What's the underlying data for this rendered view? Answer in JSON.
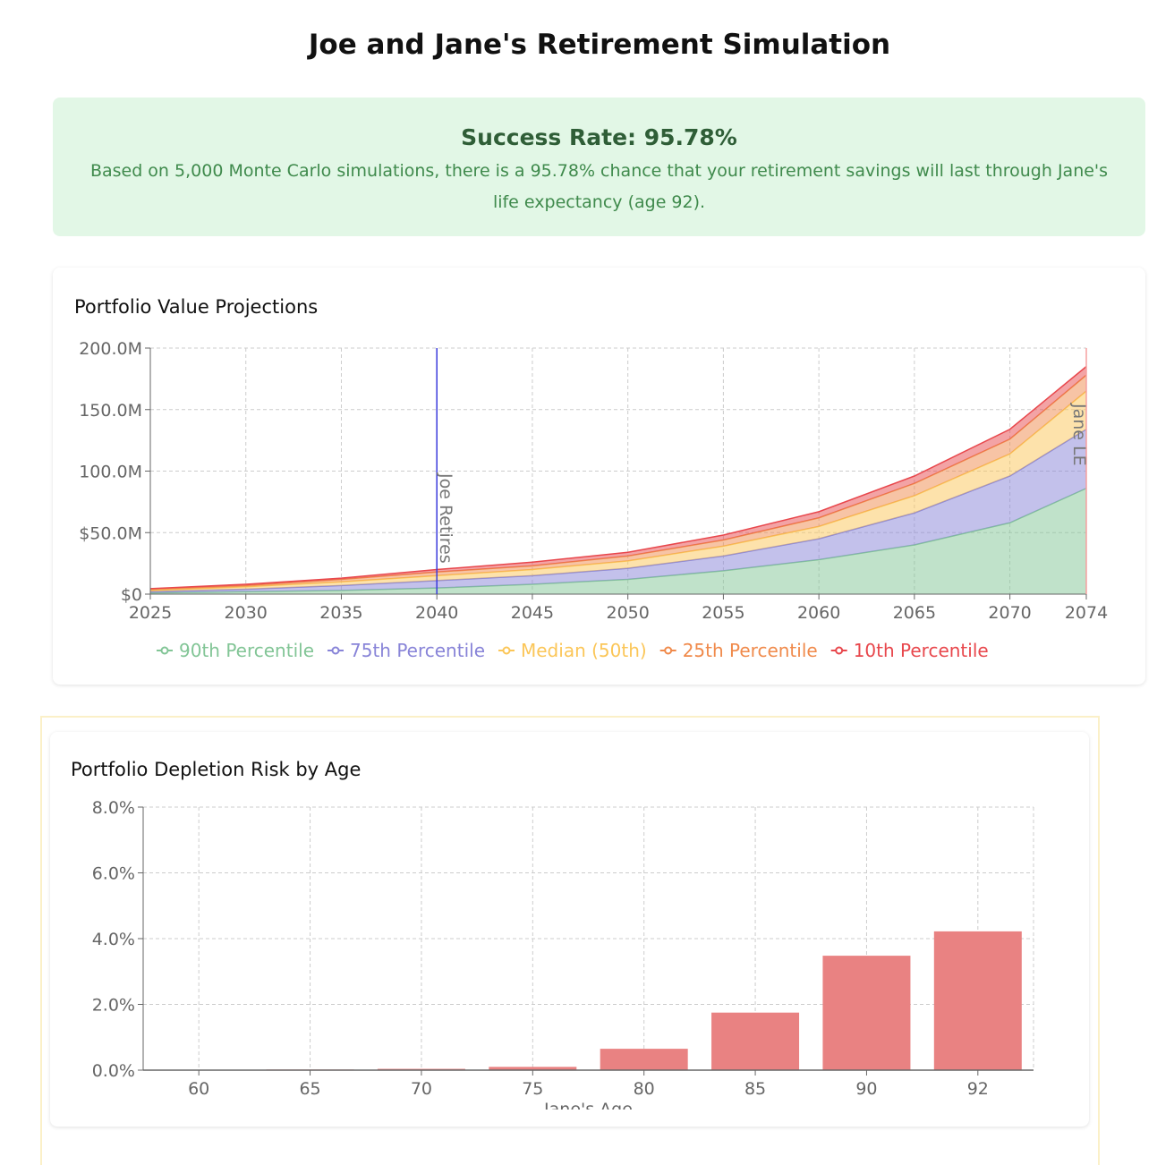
{
  "title": "Joe and Jane's Retirement Simulation",
  "banner": {
    "heading": "Success Rate: 95.78%",
    "description": "Based on 5,000 Monte Carlo simulations, there is a 95.78% chance that your retirement savings will last through Jane's life expectancy (age 92)."
  },
  "chart_data": [
    {
      "type": "area",
      "stacked": true,
      "title": "Portfolio Value Projections",
      "x": [
        2025,
        2030,
        2035,
        2040,
        2045,
        2050,
        2055,
        2060,
        2065,
        2070,
        2074
      ],
      "xticks": [
        "2025",
        "2030",
        "2035",
        "2040",
        "2045",
        "2050",
        "2055",
        "2060",
        "2065",
        "2070",
        "2074"
      ],
      "yticks": [
        "$0",
        "$50.0M",
        "100.0M",
        "150.0M",
        "200.0M"
      ],
      "ylim": [
        0,
        200
      ],
      "yunit": "$M",
      "grid": true,
      "legend": "bottom",
      "series": [
        {
          "name": "90th Percentile",
          "color": "#82c596",
          "values": [
            1,
            2,
            3,
            5,
            8,
            12,
            19,
            28,
            40,
            58,
            86
          ]
        },
        {
          "name": "75th Percentile",
          "color": "#8884d8",
          "values": [
            1,
            2,
            4,
            6,
            7,
            9,
            12,
            17,
            26,
            38,
            48
          ]
        },
        {
          "name": "Median (50th)",
          "color": "#fbc658",
          "values": [
            1,
            2,
            3,
            4,
            5,
            6,
            8,
            10,
            14,
            18,
            31
          ]
        },
        {
          "name": "25th Percentile",
          "color": "#f08a4b",
          "values": [
            1,
            1,
            2,
            3,
            3,
            4,
            5,
            7,
            10,
            12,
            13
          ]
        },
        {
          "name": "10th Percentile",
          "color": "#e8474c",
          "values": [
            0.5,
            1,
            1,
            2,
            3,
            3,
            4,
            5,
            6,
            8,
            7
          ]
        }
      ],
      "annotations": [
        {
          "x": 2040,
          "label": "Joe Retires",
          "color": "#3b3bdd"
        },
        {
          "x": 2074,
          "label": "Jane LE",
          "color": "#f5a0a0"
        }
      ]
    },
    {
      "type": "bar",
      "title": "Portfolio Depletion Risk by Age",
      "xlabel": "Jane's Age",
      "categories": [
        "60",
        "65",
        "70",
        "75",
        "80",
        "85",
        "90",
        "92"
      ],
      "values": [
        0,
        0.02,
        0.04,
        0.1,
        0.65,
        1.75,
        3.48,
        4.22
      ],
      "yticks": [
        "0.0%",
        "2.0%",
        "4.0%",
        "6.0%",
        "8.0%"
      ],
      "ylim": [
        0,
        8
      ],
      "grid": true,
      "color": "#e98282"
    }
  ]
}
